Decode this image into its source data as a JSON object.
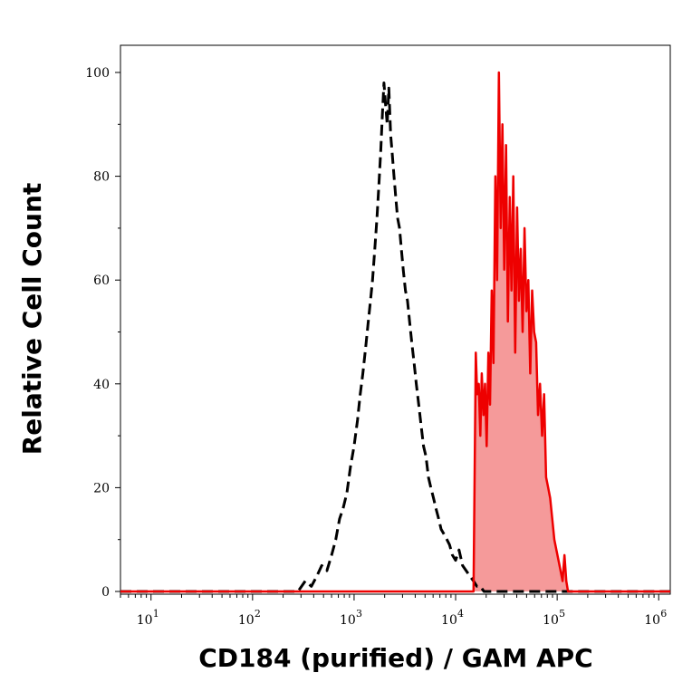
{
  "chart_data": {
    "type": "area",
    "title": "",
    "xlabel": "CD184 (purified) / GAM APC",
    "ylabel": "Relative Cell Count",
    "xscale": "log",
    "xlim": [
      5,
      1300000
    ],
    "ylim": [
      0,
      100
    ],
    "y_ticks": [
      0,
      20,
      40,
      60,
      80,
      100
    ],
    "x_ticks": [
      {
        "base": "10",
        "exp": "1",
        "value": 10
      },
      {
        "base": "10",
        "exp": "2",
        "value": 100
      },
      {
        "base": "10",
        "exp": "3",
        "value": 1000
      },
      {
        "base": "10",
        "exp": "4",
        "value": 10000
      },
      {
        "base": "10",
        "exp": "5",
        "value": 100000
      },
      {
        "base": "10",
        "exp": "6",
        "value": 1000000
      }
    ],
    "grid": false,
    "legend": "none",
    "series": [
      {
        "style": "dashed",
        "color": "#000000",
        "fill": "none",
        "x": [
          5,
          280,
          330,
          380,
          430,
          480,
          540,
          600,
          660,
          720,
          780,
          850,
          920,
          1000,
          1080,
          1150,
          1220,
          1300,
          1380,
          1450,
          1520,
          1600,
          1680,
          1750,
          1830,
          1900,
          1970,
          2040,
          2120,
          2200,
          2290,
          2380,
          2470,
          2570,
          2680,
          2800,
          2920,
          3050,
          3200,
          3360,
          3520,
          3700,
          3900,
          4100,
          4330,
          4570,
          4830,
          5100,
          5400,
          5700,
          6050,
          6400,
          6800,
          7200,
          7700,
          8200,
          8700,
          9300,
          10000,
          10800,
          11700,
          12700,
          13800,
          15000,
          16200,
          17500,
          19000,
          1300000
        ],
        "y": [
          0,
          0,
          2,
          1,
          3,
          5,
          4,
          7,
          10,
          14,
          16,
          19,
          24,
          28,
          33,
          38,
          42,
          47,
          52,
          56,
          60,
          66,
          72,
          78,
          85,
          92,
          98,
          94,
          90,
          97,
          88,
          84,
          80,
          76,
          72,
          70,
          66,
          62,
          58,
          56,
          52,
          48,
          44,
          40,
          36,
          32,
          28,
          26,
          22,
          20,
          18,
          16,
          14,
          12,
          11,
          10,
          9,
          7,
          6,
          8,
          5,
          4,
          3,
          2,
          1,
          1,
          0,
          0
        ]
      },
      {
        "style": "solid",
        "color": "#ee0000",
        "fill": "#f59a9a",
        "x": [
          5,
          15000,
          15800,
          16300,
          16900,
          17500,
          18100,
          18800,
          19500,
          20200,
          21000,
          21800,
          22700,
          23600,
          24600,
          25600,
          26700,
          27800,
          28900,
          30100,
          31400,
          32700,
          34100,
          35500,
          37000,
          38600,
          40300,
          42000,
          43800,
          45700,
          47700,
          49800,
          52000,
          54300,
          56700,
          59300,
          62000,
          64800,
          67800,
          71000,
          74300,
          77800,
          81500,
          85400,
          89500,
          93800,
          98300,
          103000,
          108000,
          113000,
          118000,
          123000,
          128000,
          1300000
        ],
        "y": [
          0,
          0,
          46,
          38,
          40,
          30,
          42,
          34,
          40,
          28,
          46,
          36,
          58,
          44,
          80,
          60,
          100,
          70,
          90,
          62,
          86,
          52,
          76,
          58,
          80,
          46,
          74,
          56,
          66,
          50,
          70,
          54,
          60,
          42,
          58,
          50,
          48,
          34,
          40,
          30,
          38,
          22,
          20,
          18,
          14,
          10,
          8,
          6,
          4,
          2,
          7,
          2,
          0,
          0
        ]
      }
    ]
  }
}
